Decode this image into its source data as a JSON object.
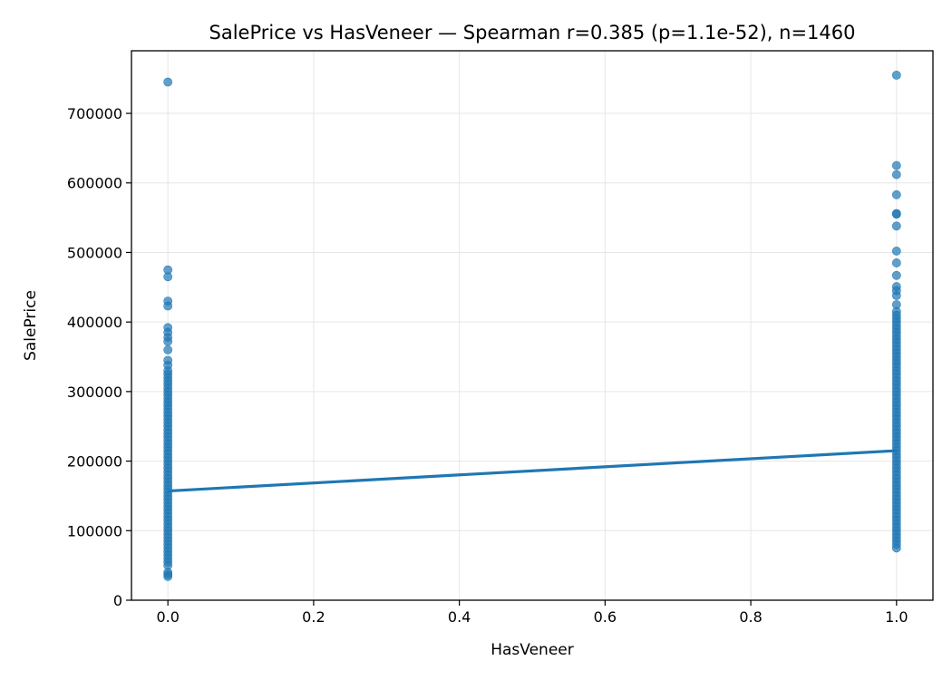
{
  "chart_data": {
    "type": "scatter",
    "title": "SalePrice vs HasVeneer — Spearman r=0.385 (p=1.1e-52), n=1460",
    "xlabel": "HasVeneer",
    "ylabel": "SalePrice",
    "xlim": [
      -0.05,
      1.05
    ],
    "ylim": [
      0,
      790000
    ],
    "xticks": [
      0.0,
      0.2,
      0.4,
      0.6,
      0.8,
      1.0
    ],
    "xtick_labels": [
      "0.0",
      "0.2",
      "0.4",
      "0.6",
      "0.8",
      "1.0"
    ],
    "yticks": [
      0,
      100000,
      200000,
      300000,
      400000,
      500000,
      600000,
      700000
    ],
    "ytick_labels": [
      "0",
      "100000",
      "200000",
      "300000",
      "400000",
      "500000",
      "600000",
      "700000"
    ],
    "grid": true,
    "colors": {
      "points": "#1f77b4",
      "fit_line": "#1f77b4"
    },
    "series": [
      {
        "x": 0,
        "y": [
          745000,
          475000,
          465000,
          430000,
          423000,
          392000,
          385000,
          378000,
          372000,
          360000,
          345000,
          338000,
          330000,
          325000,
          320000,
          315000,
          310000,
          305000,
          300000,
          295000,
          290000,
          285000,
          280000,
          275000,
          270000,
          265000,
          260000,
          255000,
          250000,
          245000,
          240000,
          235000,
          230000,
          225000,
          220000,
          215000,
          210000,
          205000,
          200000,
          195000,
          190000,
          185000,
          180000,
          175000,
          170000,
          165000,
          160000,
          155000,
          150000,
          145000,
          140000,
          135000,
          130000,
          125000,
          120000,
          115000,
          110000,
          105000,
          100000,
          95000,
          90000,
          85000,
          80000,
          75000,
          70000,
          65000,
          60000,
          55000,
          50000,
          40000,
          37000,
          34000
        ]
      },
      {
        "x": 1,
        "y": [
          755000,
          625000,
          612000,
          583000,
          556000,
          555000,
          538000,
          502000,
          485000,
          467000,
          451000,
          445000,
          438000,
          425000,
          415000,
          410000,
          405000,
          400000,
          395000,
          390000,
          385000,
          380000,
          375000,
          370000,
          365000,
          360000,
          355000,
          350000,
          345000,
          340000,
          335000,
          330000,
          325000,
          320000,
          315000,
          310000,
          305000,
          300000,
          295000,
          290000,
          285000,
          280000,
          275000,
          270000,
          265000,
          260000,
          255000,
          250000,
          245000,
          240000,
          235000,
          230000,
          225000,
          220000,
          215000,
          210000,
          205000,
          200000,
          195000,
          190000,
          185000,
          180000,
          175000,
          170000,
          165000,
          160000,
          155000,
          150000,
          145000,
          140000,
          135000,
          130000,
          125000,
          120000,
          115000,
          110000,
          105000,
          100000,
          95000,
          90000,
          85000,
          80000,
          75000
        ]
      }
    ],
    "fit_line": {
      "x": [
        0,
        1
      ],
      "y": [
        157000,
        215000
      ]
    }
  }
}
